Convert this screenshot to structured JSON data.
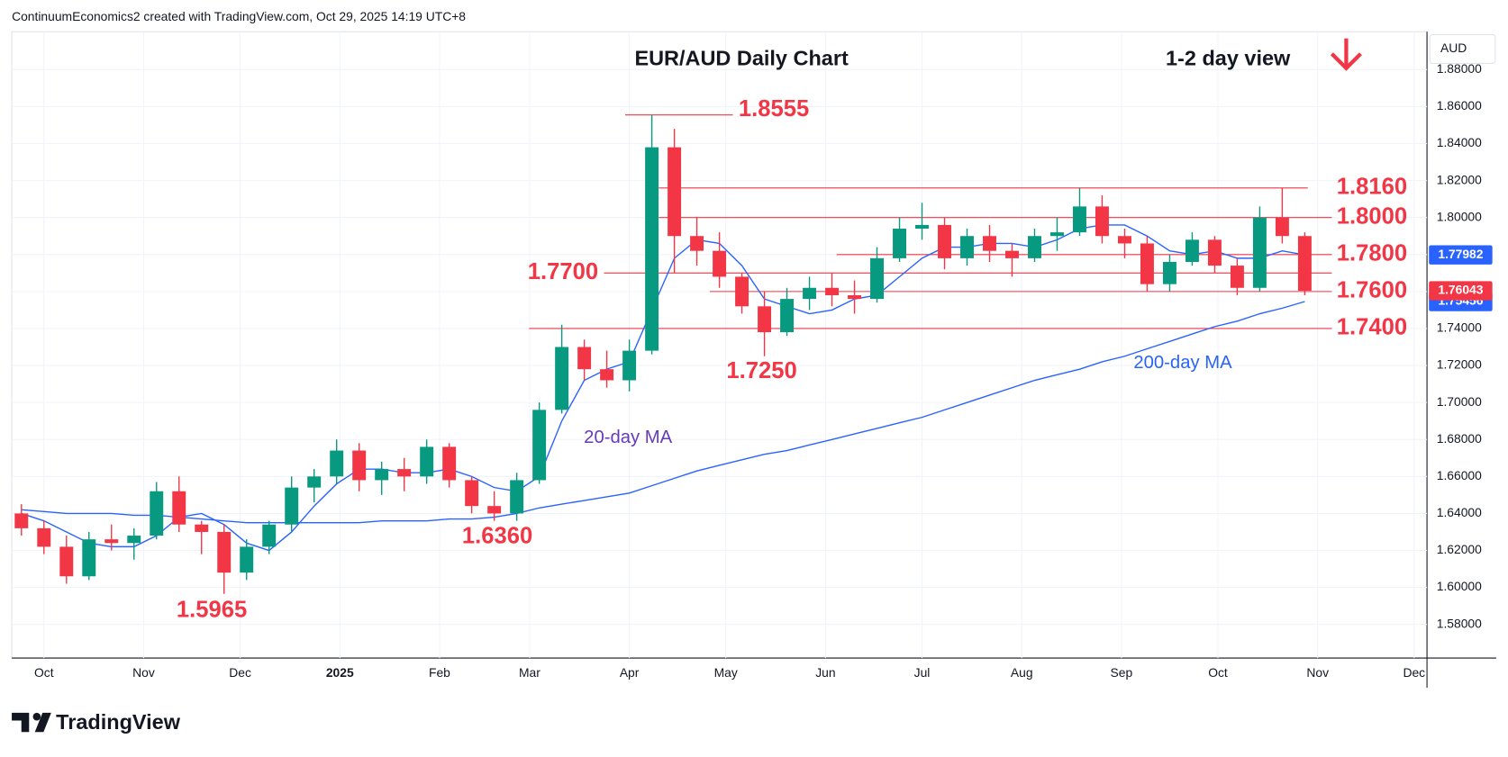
{
  "header": "ContinuumEconomics2 created with TradingView.com, Oct 29, 2025 14:19 UTC+8",
  "brand": "TradingView",
  "chart_data": {
    "type": "candlestick",
    "title": "EUR/AUD Daily Chart",
    "subtitle": "1-2 day view",
    "currency": "AUD",
    "up_color": "#089981",
    "down_color": "#f23645",
    "grid": true,
    "xlim": [
      -10,
      430
    ],
    "ylim": [
      1.5618,
      1.9005
    ],
    "xticks": [
      {
        "value": 0,
        "label": "Oct"
      },
      {
        "value": 31,
        "label": "Nov"
      },
      {
        "value": 61,
        "label": "Dec"
      },
      {
        "value": 92,
        "label": "2025"
      },
      {
        "value": 123,
        "label": "Feb"
      },
      {
        "value": 151,
        "label": "Mar"
      },
      {
        "value": 182,
        "label": "Apr"
      },
      {
        "value": 212,
        "label": "May"
      },
      {
        "value": 243,
        "label": "Jun"
      },
      {
        "value": 273,
        "label": "Jul"
      },
      {
        "value": 304,
        "label": "Aug"
      },
      {
        "value": 335,
        "label": "Sep"
      },
      {
        "value": 365,
        "label": "Oct"
      },
      {
        "value": 396,
        "label": "Nov"
      },
      {
        "value": 426,
        "label": "Dec"
      }
    ],
    "yticks": [
      {
        "value": 1.58,
        "label": "1.58000"
      },
      {
        "value": 1.6,
        "label": "1.60000"
      },
      {
        "value": 1.62,
        "label": "1.62000"
      },
      {
        "value": 1.64,
        "label": "1.64000"
      },
      {
        "value": 1.66,
        "label": "1.66000"
      },
      {
        "value": 1.68,
        "label": "1.68000"
      },
      {
        "value": 1.7,
        "label": "1.70000"
      },
      {
        "value": 1.72,
        "label": "1.72000"
      },
      {
        "value": 1.74,
        "label": "1.74000"
      },
      {
        "value": 1.76,
        "label": "1.76000"
      },
      {
        "value": 1.78,
        "label": "1.78000"
      },
      {
        "value": 1.8,
        "label": "1.80000"
      },
      {
        "value": 1.82,
        "label": "1.82000"
      },
      {
        "value": 1.84,
        "label": "1.84000"
      },
      {
        "value": 1.86,
        "label": "1.86000"
      },
      {
        "value": 1.88,
        "label": "1.88000"
      }
    ],
    "x": [
      -7,
      0,
      7,
      14,
      21,
      28,
      35,
      42,
      49,
      56,
      63,
      70,
      77,
      84,
      91,
      98,
      105,
      112,
      119,
      126,
      133,
      140,
      147,
      154,
      161,
      168,
      175,
      182,
      189,
      196,
      203,
      210,
      217,
      224,
      231,
      238,
      245,
      252,
      259,
      266,
      273,
      280,
      287,
      294,
      301,
      308,
      315,
      322,
      329,
      336,
      343,
      350,
      357,
      364,
      371,
      378,
      385,
      392
    ],
    "open": [
      1.64,
      1.632,
      1.622,
      1.606,
      1.626,
      1.624,
      1.628,
      1.652,
      1.634,
      1.63,
      1.608,
      1.622,
      1.634,
      1.654,
      1.66,
      1.674,
      1.658,
      1.664,
      1.66,
      1.676,
      1.658,
      1.644,
      1.64,
      1.658,
      1.696,
      1.73,
      1.718,
      1.712,
      1.728,
      1.838,
      1.79,
      1.782,
      1.768,
      1.752,
      1.738,
      1.756,
      1.762,
      1.758,
      1.756,
      1.778,
      1.794,
      1.796,
      1.778,
      1.79,
      1.782,
      1.778,
      1.79,
      1.792,
      1.806,
      1.79,
      1.786,
      1.764,
      1.776,
      1.788,
      1.774,
      1.762,
      1.8,
      1.79
    ],
    "high": [
      1.645,
      1.636,
      1.628,
      1.63,
      1.634,
      1.632,
      1.657,
      1.66,
      1.636,
      1.634,
      1.626,
      1.636,
      1.66,
      1.664,
      1.68,
      1.678,
      1.668,
      1.67,
      1.68,
      1.678,
      1.66,
      1.652,
      1.662,
      1.7,
      1.742,
      1.734,
      1.728,
      1.734,
      1.8555,
      1.848,
      1.8,
      1.792,
      1.77,
      1.76,
      1.762,
      1.768,
      1.77,
      1.766,
      1.784,
      1.8,
      1.808,
      1.8,
      1.794,
      1.796,
      1.786,
      1.794,
      1.8,
      1.816,
      1.812,
      1.794,
      1.79,
      1.78,
      1.792,
      1.79,
      1.778,
      1.806,
      1.816,
      1.792
    ],
    "low": [
      1.628,
      1.618,
      1.602,
      1.604,
      1.62,
      1.615,
      1.626,
      1.63,
      1.618,
      1.5965,
      1.604,
      1.618,
      1.63,
      1.646,
      1.656,
      1.652,
      1.65,
      1.652,
      1.656,
      1.654,
      1.64,
      1.636,
      1.636,
      1.656,
      1.694,
      1.712,
      1.708,
      1.706,
      1.726,
      1.77,
      1.774,
      1.762,
      1.748,
      1.725,
      1.736,
      1.75,
      1.752,
      1.748,
      1.754,
      1.776,
      1.788,
      1.772,
      1.774,
      1.776,
      1.768,
      1.776,
      1.782,
      1.79,
      1.786,
      1.778,
      1.76,
      1.76,
      1.774,
      1.77,
      1.758,
      1.76,
      1.786,
      1.758
    ],
    "close": [
      1.632,
      1.622,
      1.606,
      1.626,
      1.624,
      1.628,
      1.652,
      1.634,
      1.63,
      1.608,
      1.622,
      1.634,
      1.654,
      1.66,
      1.674,
      1.658,
      1.664,
      1.66,
      1.676,
      1.658,
      1.644,
      1.64,
      1.658,
      1.696,
      1.73,
      1.718,
      1.712,
      1.728,
      1.838,
      1.79,
      1.782,
      1.768,
      1.752,
      1.738,
      1.756,
      1.762,
      1.758,
      1.756,
      1.778,
      1.794,
      1.796,
      1.778,
      1.79,
      1.782,
      1.778,
      1.79,
      1.792,
      1.806,
      1.79,
      1.786,
      1.764,
      1.776,
      1.788,
      1.774,
      1.762,
      1.8,
      1.79,
      1.76043
    ],
    "close_last_label": "1.76043",
    "series": [
      {
        "name": "20-day MA",
        "color": "#2962ff",
        "label_color": "#673ab7",
        "last_label": "1.77982",
        "values": [
          1.64,
          1.636,
          1.63,
          1.624,
          1.622,
          1.622,
          1.628,
          1.638,
          1.64,
          1.634,
          1.624,
          1.62,
          1.63,
          1.644,
          1.656,
          1.664,
          1.664,
          1.662,
          1.662,
          1.664,
          1.66,
          1.654,
          1.652,
          1.66,
          1.69,
          1.712,
          1.718,
          1.722,
          1.75,
          1.778,
          1.788,
          1.786,
          1.774,
          1.756,
          1.752,
          1.748,
          1.75,
          1.756,
          1.758,
          1.768,
          1.778,
          1.784,
          1.784,
          1.786,
          1.786,
          1.784,
          1.788,
          1.794,
          1.796,
          1.796,
          1.79,
          1.782,
          1.78,
          1.782,
          1.778,
          1.778,
          1.782,
          1.77982
        ]
      },
      {
        "name": "200-day MA",
        "color": "#2962ff",
        "label_color": "#2962ff",
        "last_label": "1.75456",
        "values": [
          1.642,
          1.641,
          1.64,
          1.64,
          1.64,
          1.639,
          1.639,
          1.638,
          1.637,
          1.636,
          1.635,
          1.635,
          1.635,
          1.635,
          1.635,
          1.635,
          1.636,
          1.636,
          1.636,
          1.637,
          1.637,
          1.638,
          1.64,
          1.643,
          1.645,
          1.647,
          1.649,
          1.651,
          1.655,
          1.659,
          1.663,
          1.666,
          1.669,
          1.672,
          1.674,
          1.677,
          1.68,
          1.683,
          1.686,
          1.689,
          1.692,
          1.696,
          1.7,
          1.704,
          1.708,
          1.712,
          1.715,
          1.718,
          1.722,
          1.725,
          1.729,
          1.733,
          1.737,
          1.741,
          1.744,
          1.748,
          1.751,
          1.75456
        ]
      }
    ],
    "levels": [
      {
        "value": 1.8555,
        "label": "1.8555"
      },
      {
        "value": 1.816,
        "label": "1.8160"
      },
      {
        "value": 1.8,
        "label": "1.8000"
      },
      {
        "value": 1.78,
        "label": "1.7800"
      },
      {
        "value": 1.77,
        "label": "1.7700"
      },
      {
        "value": 1.76,
        "label": "1.7600"
      },
      {
        "value": 1.74,
        "label": "1.7400"
      }
    ],
    "level_color": "#f23645",
    "annotations": [
      "1.7250",
      "1.6360",
      "1.5965"
    ]
  }
}
